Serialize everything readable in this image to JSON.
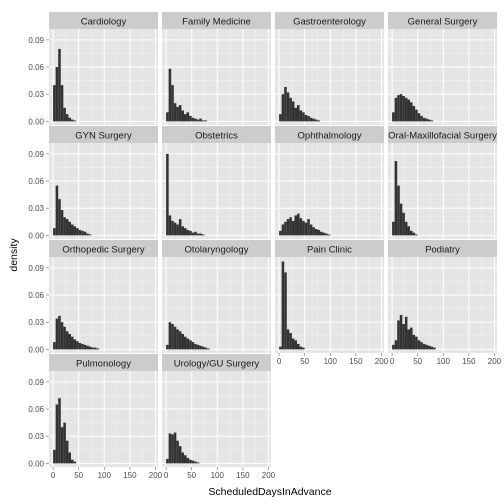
{
  "colors": {
    "panel_bg": "#e5e5e5",
    "strip_bg": "#cccccc",
    "grid_major": "#ffffff",
    "grid_minor": "#f2f2f2",
    "bar_fill": "#333333",
    "tick_color": "#7f7f7f"
  },
  "chart_data": {
    "type": "bar",
    "subtype": "faceted-histogram",
    "xlabel": "ScheduledDaysInAdvance",
    "ylabel": "density",
    "xlim": [
      -8,
      205
    ],
    "ylim": [
      -0.004,
      0.102
    ],
    "x_ticks": [
      0,
      50,
      100,
      150,
      200
    ],
    "x_tick_labels": [
      "0",
      "50",
      "100",
      "150",
      "200"
    ],
    "y_ticks": [
      0,
      0.03,
      0.06,
      0.09
    ],
    "y_tick_labels": [
      "0.00",
      "0.03",
      "0.06",
      "0.09"
    ],
    "bin_width": 5,
    "bin_start": 0,
    "facets": [
      {
        "name": "Cardiology",
        "density": [
          0.04,
          0.06,
          0.08,
          0.04,
          0.015,
          0.008,
          0.004,
          0.002,
          0.001
        ]
      },
      {
        "name": "Family Medicine",
        "density": [
          0.01,
          0.058,
          0.04,
          0.02,
          0.016,
          0.018,
          0.012,
          0.008,
          0.01,
          0.006,
          0.004,
          0.003,
          0.002,
          0.003,
          0.001,
          0.001
        ]
      },
      {
        "name": "Gastroenterology",
        "density": [
          0.008,
          0.03,
          0.038,
          0.032,
          0.026,
          0.022,
          0.015,
          0.018,
          0.012,
          0.01,
          0.007,
          0.006,
          0.004,
          0.003,
          0.002,
          0.001
        ]
      },
      {
        "name": "General Surgery",
        "density": [
          0.01,
          0.026,
          0.029,
          0.03,
          0.028,
          0.026,
          0.024,
          0.021,
          0.017,
          0.013,
          0.009,
          0.006,
          0.004,
          0.003,
          0.002,
          0.001
        ]
      },
      {
        "name": "GYN Surgery",
        "density": [
          0.008,
          0.055,
          0.04,
          0.028,
          0.02,
          0.018,
          0.015,
          0.012,
          0.01,
          0.008,
          0.006,
          0.005,
          0.004,
          0.002,
          0.001
        ]
      },
      {
        "name": "Obstetrics",
        "density": [
          0.09,
          0.022,
          0.016,
          0.014,
          0.012,
          0.018,
          0.01,
          0.008,
          0.006,
          0.005,
          0.003,
          0.004,
          0.002,
          0.002,
          0.001
        ]
      },
      {
        "name": "Ophthalmology",
        "density": [
          0.005,
          0.012,
          0.015,
          0.018,
          0.02,
          0.016,
          0.022,
          0.024,
          0.019,
          0.016,
          0.014,
          0.018,
          0.012,
          0.009,
          0.007,
          0.006,
          0.004,
          0.003,
          0.002,
          0.001
        ]
      },
      {
        "name": "Oral-Maxillofacial Surgery",
        "density": [
          0.015,
          0.082,
          0.055,
          0.035,
          0.025,
          0.015,
          0.01,
          0.005,
          0.003,
          0.001
        ]
      },
      {
        "name": "Orthopedic Surgery",
        "density": [
          0.008,
          0.034,
          0.037,
          0.03,
          0.025,
          0.02,
          0.017,
          0.014,
          0.011,
          0.009,
          0.007,
          0.006,
          0.005,
          0.004,
          0.003,
          0.002,
          0.002,
          0.001
        ]
      },
      {
        "name": "Otolaryngology",
        "density": [
          0.005,
          0.03,
          0.028,
          0.025,
          0.022,
          0.02,
          0.017,
          0.014,
          0.012,
          0.01,
          0.008,
          0.006,
          0.005,
          0.004,
          0.003,
          0.002,
          0.001
        ]
      },
      {
        "name": "Pain Clinic",
        "density": [
          0.003,
          0.097,
          0.085,
          0.022,
          0.018,
          0.012,
          0.01,
          0.006,
          0.003,
          0.002
        ]
      },
      {
        "name": "Podiatry",
        "density": [
          0.005,
          0.01,
          0.032,
          0.038,
          0.028,
          0.036,
          0.022,
          0.024,
          0.016,
          0.014,
          0.01,
          0.008,
          0.006,
          0.005,
          0.004,
          0.003,
          0.002
        ]
      },
      {
        "name": "Pulmonology",
        "density": [
          0.015,
          0.065,
          0.072,
          0.04,
          0.045,
          0.025,
          0.012,
          0.004,
          0.002
        ]
      },
      {
        "name": "Urology/GU Surgery",
        "density": [
          0.005,
          0.033,
          0.032,
          0.034,
          0.025,
          0.019,
          0.012,
          0.009,
          0.006,
          0.004,
          0.003,
          0.002,
          0.001
        ]
      }
    ]
  }
}
